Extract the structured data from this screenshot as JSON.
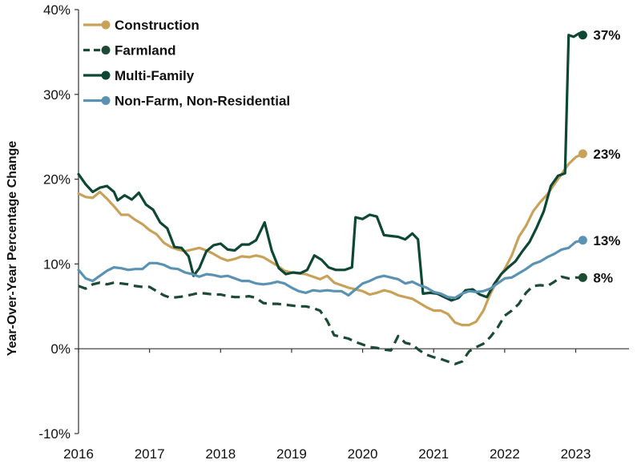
{
  "chart_data": {
    "type": "line",
    "title": "",
    "xlabel": "",
    "ylabel": "Year-Over-Year Percentage Change",
    "xlim": [
      2016,
      2023.75
    ],
    "ylim": [
      -10,
      40
    ],
    "grid": false,
    "legend_position": "top-left",
    "x_ticks": [
      {
        "value": 2016,
        "label": "2016"
      },
      {
        "value": 2017,
        "label": "2017"
      },
      {
        "value": 2018,
        "label": "2018"
      },
      {
        "value": 2019,
        "label": "2019"
      },
      {
        "value": 2020,
        "label": "2020"
      },
      {
        "value": 2021,
        "label": "2021"
      },
      {
        "value": 2022,
        "label": "2022"
      },
      {
        "value": 2023,
        "label": "2023"
      }
    ],
    "y_ticks": [
      {
        "value": -10,
        "label": "-10%"
      },
      {
        "value": 0,
        "label": "0%"
      },
      {
        "value": 10,
        "label": "10%"
      },
      {
        "value": 20,
        "label": "20%"
      },
      {
        "value": 30,
        "label": "30%"
      },
      {
        "value": 40,
        "label": "40%"
      }
    ],
    "series": [
      {
        "name": "Construction",
        "color": "#c9a25a",
        "dash": "solid",
        "end_label": "23%",
        "points": [
          [
            2016.0,
            18.3
          ],
          [
            2016.1,
            17.9
          ],
          [
            2016.2,
            17.8
          ],
          [
            2016.3,
            18.5
          ],
          [
            2016.4,
            17.7
          ],
          [
            2016.5,
            16.8
          ],
          [
            2016.6,
            15.8
          ],
          [
            2016.7,
            15.8
          ],
          [
            2016.8,
            15.2
          ],
          [
            2016.9,
            14.7
          ],
          [
            2017.0,
            14.0
          ],
          [
            2017.1,
            13.5
          ],
          [
            2017.2,
            12.5
          ],
          [
            2017.3,
            12.0
          ],
          [
            2017.4,
            11.7
          ],
          [
            2017.5,
            11.5
          ],
          [
            2017.6,
            11.7
          ],
          [
            2017.7,
            11.9
          ],
          [
            2017.8,
            11.6
          ],
          [
            2017.9,
            11.2
          ],
          [
            2018.0,
            10.7
          ],
          [
            2018.1,
            10.4
          ],
          [
            2018.2,
            10.6
          ],
          [
            2018.3,
            10.9
          ],
          [
            2018.4,
            10.8
          ],
          [
            2018.5,
            11.0
          ],
          [
            2018.6,
            10.8
          ],
          [
            2018.7,
            10.3
          ],
          [
            2018.8,
            9.8
          ],
          [
            2018.9,
            9.2
          ],
          [
            2019.0,
            9.0
          ],
          [
            2019.1,
            8.9
          ],
          [
            2019.2,
            8.8
          ],
          [
            2019.3,
            8.5
          ],
          [
            2019.4,
            8.2
          ],
          [
            2019.5,
            8.6
          ],
          [
            2019.6,
            7.8
          ],
          [
            2019.7,
            7.5
          ],
          [
            2019.8,
            7.2
          ],
          [
            2019.9,
            7.0
          ],
          [
            2020.0,
            6.8
          ],
          [
            2020.1,
            6.4
          ],
          [
            2020.2,
            6.6
          ],
          [
            2020.3,
            6.9
          ],
          [
            2020.4,
            6.7
          ],
          [
            2020.5,
            6.3
          ],
          [
            2020.6,
            6.1
          ],
          [
            2020.7,
            5.9
          ],
          [
            2020.8,
            5.4
          ],
          [
            2020.9,
            4.9
          ],
          [
            2021.0,
            4.5
          ],
          [
            2021.1,
            4.5
          ],
          [
            2021.2,
            4.1
          ],
          [
            2021.3,
            3.1
          ],
          [
            2021.4,
            2.8
          ],
          [
            2021.5,
            2.8
          ],
          [
            2021.6,
            3.2
          ],
          [
            2021.7,
            4.5
          ],
          [
            2021.8,
            6.5
          ],
          [
            2021.9,
            8.1
          ],
          [
            2022.0,
            9.4
          ],
          [
            2022.1,
            11.0
          ],
          [
            2022.2,
            13.2
          ],
          [
            2022.3,
            14.5
          ],
          [
            2022.4,
            16.2
          ],
          [
            2022.5,
            17.3
          ],
          [
            2022.6,
            18.2
          ],
          [
            2022.7,
            19.4
          ],
          [
            2022.8,
            20.6
          ],
          [
            2022.9,
            21.8
          ],
          [
            2023.0,
            22.6
          ],
          [
            2023.1,
            23.0
          ]
        ]
      },
      {
        "name": "Farmland",
        "color": "#1c4a35",
        "dash": "dashed",
        "end_label": "8%",
        "points": [
          [
            2016.0,
            7.4
          ],
          [
            2016.1,
            7.1
          ],
          [
            2016.2,
            7.6
          ],
          [
            2016.3,
            7.8
          ],
          [
            2016.4,
            7.6
          ],
          [
            2016.5,
            7.8
          ],
          [
            2016.6,
            7.7
          ],
          [
            2016.7,
            7.6
          ],
          [
            2016.8,
            7.4
          ],
          [
            2016.9,
            7.3
          ],
          [
            2017.0,
            7.3
          ],
          [
            2017.1,
            6.8
          ],
          [
            2017.2,
            6.3
          ],
          [
            2017.3,
            6.0
          ],
          [
            2017.4,
            6.1
          ],
          [
            2017.5,
            6.2
          ],
          [
            2017.6,
            6.4
          ],
          [
            2017.7,
            6.6
          ],
          [
            2017.8,
            6.5
          ],
          [
            2017.9,
            6.4
          ],
          [
            2018.0,
            6.4
          ],
          [
            2018.1,
            6.2
          ],
          [
            2018.2,
            6.1
          ],
          [
            2018.3,
            6.1
          ],
          [
            2018.4,
            6.2
          ],
          [
            2018.5,
            6.0
          ],
          [
            2018.6,
            5.4
          ],
          [
            2018.7,
            5.3
          ],
          [
            2018.8,
            5.3
          ],
          [
            2018.9,
            5.2
          ],
          [
            2019.0,
            5.1
          ],
          [
            2019.1,
            5.0
          ],
          [
            2019.2,
            5.0
          ],
          [
            2019.3,
            4.8
          ],
          [
            2019.4,
            4.5
          ],
          [
            2019.5,
            3.3
          ],
          [
            2019.6,
            1.6
          ],
          [
            2019.7,
            1.4
          ],
          [
            2019.8,
            1.2
          ],
          [
            2019.9,
            0.8
          ],
          [
            2020.0,
            0.5
          ],
          [
            2020.1,
            0.2
          ],
          [
            2020.2,
            0.1
          ],
          [
            2020.3,
            -0.1
          ],
          [
            2020.4,
            -0.2
          ],
          [
            2020.5,
            1.5
          ],
          [
            2020.6,
            0.7
          ],
          [
            2020.7,
            0.5
          ],
          [
            2020.8,
            -0.2
          ],
          [
            2020.9,
            -0.7
          ],
          [
            2021.0,
            -1.0
          ],
          [
            2021.1,
            -1.2
          ],
          [
            2021.2,
            -1.5
          ],
          [
            2021.3,
            -1.8
          ],
          [
            2021.4,
            -1.5
          ],
          [
            2021.5,
            -0.3
          ],
          [
            2021.6,
            0.2
          ],
          [
            2021.7,
            0.6
          ],
          [
            2021.8,
            1.4
          ],
          [
            2021.9,
            2.5
          ],
          [
            2022.0,
            3.9
          ],
          [
            2022.1,
            4.5
          ],
          [
            2022.2,
            5.3
          ],
          [
            2022.3,
            6.6
          ],
          [
            2022.4,
            7.4
          ],
          [
            2022.5,
            7.5
          ],
          [
            2022.6,
            7.4
          ],
          [
            2022.7,
            7.9
          ],
          [
            2022.8,
            8.5
          ],
          [
            2022.9,
            8.3
          ],
          [
            2023.0,
            8.4
          ],
          [
            2023.1,
            8.4
          ]
        ]
      },
      {
        "name": "Multi-Family",
        "color": "#0e4733",
        "dash": "solid",
        "end_label": "37%",
        "points": [
          [
            2016.0,
            20.6
          ],
          [
            2016.1,
            19.4
          ],
          [
            2016.2,
            18.5
          ],
          [
            2016.3,
            19.0
          ],
          [
            2016.4,
            19.2
          ],
          [
            2016.5,
            18.5
          ],
          [
            2016.55,
            17.5
          ],
          [
            2016.65,
            18.1
          ],
          [
            2016.75,
            17.6
          ],
          [
            2016.85,
            18.4
          ],
          [
            2016.95,
            17.0
          ],
          [
            2017.05,
            16.4
          ],
          [
            2017.15,
            14.9
          ],
          [
            2017.25,
            14.2
          ],
          [
            2017.35,
            12.0
          ],
          [
            2017.45,
            11.9
          ],
          [
            2017.55,
            10.9
          ],
          [
            2017.62,
            8.6
          ],
          [
            2017.7,
            9.5
          ],
          [
            2017.8,
            11.5
          ],
          [
            2017.9,
            12.2
          ],
          [
            2018.0,
            12.4
          ],
          [
            2018.1,
            11.7
          ],
          [
            2018.2,
            11.6
          ],
          [
            2018.3,
            12.3
          ],
          [
            2018.4,
            12.3
          ],
          [
            2018.5,
            12.8
          ],
          [
            2018.62,
            14.9
          ],
          [
            2018.72,
            11.6
          ],
          [
            2018.82,
            9.5
          ],
          [
            2018.92,
            8.8
          ],
          [
            2019.02,
            9.0
          ],
          [
            2019.12,
            8.9
          ],
          [
            2019.22,
            9.3
          ],
          [
            2019.32,
            11.0
          ],
          [
            2019.42,
            10.5
          ],
          [
            2019.52,
            9.6
          ],
          [
            2019.62,
            9.3
          ],
          [
            2019.75,
            9.3
          ],
          [
            2019.85,
            9.6
          ],
          [
            2019.9,
            15.5
          ],
          [
            2020.0,
            15.3
          ],
          [
            2020.1,
            15.8
          ],
          [
            2020.2,
            15.6
          ],
          [
            2020.3,
            13.4
          ],
          [
            2020.4,
            13.3
          ],
          [
            2020.5,
            13.2
          ],
          [
            2020.6,
            12.9
          ],
          [
            2020.7,
            13.6
          ],
          [
            2020.78,
            12.9
          ],
          [
            2020.85,
            6.5
          ],
          [
            2020.95,
            6.6
          ],
          [
            2021.05,
            6.5
          ],
          [
            2021.15,
            6.1
          ],
          [
            2021.25,
            5.7
          ],
          [
            2021.35,
            6.0
          ],
          [
            2021.45,
            6.9
          ],
          [
            2021.55,
            7.0
          ],
          [
            2021.65,
            6.4
          ],
          [
            2021.75,
            6.1
          ],
          [
            2021.85,
            7.6
          ],
          [
            2021.95,
            8.8
          ],
          [
            2022.05,
            9.6
          ],
          [
            2022.15,
            10.3
          ],
          [
            2022.25,
            11.5
          ],
          [
            2022.35,
            12.6
          ],
          [
            2022.45,
            14.3
          ],
          [
            2022.55,
            16.2
          ],
          [
            2022.65,
            19.2
          ],
          [
            2022.75,
            20.4
          ],
          [
            2022.85,
            20.7
          ],
          [
            2022.9,
            37.0
          ],
          [
            2022.97,
            36.8
          ],
          [
            2023.05,
            37.2
          ],
          [
            2023.1,
            37.0
          ]
        ]
      },
      {
        "name": "Non-Farm, Non-Residential",
        "color": "#5b92b4",
        "dash": "solid",
        "end_label": "13%",
        "points": [
          [
            2016.0,
            9.3
          ],
          [
            2016.1,
            8.3
          ],
          [
            2016.2,
            8.0
          ],
          [
            2016.3,
            8.6
          ],
          [
            2016.4,
            9.2
          ],
          [
            2016.5,
            9.6
          ],
          [
            2016.6,
            9.5
          ],
          [
            2016.7,
            9.3
          ],
          [
            2016.8,
            9.4
          ],
          [
            2016.9,
            9.4
          ],
          [
            2017.0,
            10.1
          ],
          [
            2017.1,
            10.1
          ],
          [
            2017.2,
            9.9
          ],
          [
            2017.3,
            9.5
          ],
          [
            2017.4,
            9.4
          ],
          [
            2017.5,
            9.0
          ],
          [
            2017.6,
            8.8
          ],
          [
            2017.7,
            8.5
          ],
          [
            2017.8,
            8.8
          ],
          [
            2017.9,
            8.7
          ],
          [
            2018.0,
            8.5
          ],
          [
            2018.1,
            8.6
          ],
          [
            2018.2,
            8.3
          ],
          [
            2018.3,
            8.0
          ],
          [
            2018.4,
            8.0
          ],
          [
            2018.5,
            7.7
          ],
          [
            2018.6,
            7.6
          ],
          [
            2018.7,
            7.7
          ],
          [
            2018.8,
            7.9
          ],
          [
            2018.9,
            7.7
          ],
          [
            2019.0,
            7.2
          ],
          [
            2019.1,
            6.8
          ],
          [
            2019.2,
            6.6
          ],
          [
            2019.3,
            6.9
          ],
          [
            2019.4,
            6.8
          ],
          [
            2019.5,
            6.9
          ],
          [
            2019.6,
            6.8
          ],
          [
            2019.7,
            6.8
          ],
          [
            2019.8,
            6.3
          ],
          [
            2019.9,
            7.0
          ],
          [
            2020.0,
            7.7
          ],
          [
            2020.1,
            8.0
          ],
          [
            2020.2,
            8.4
          ],
          [
            2020.3,
            8.6
          ],
          [
            2020.4,
            8.4
          ],
          [
            2020.5,
            8.2
          ],
          [
            2020.6,
            7.7
          ],
          [
            2020.7,
            7.9
          ],
          [
            2020.8,
            7.5
          ],
          [
            2020.9,
            7.2
          ],
          [
            2021.0,
            6.7
          ],
          [
            2021.1,
            6.5
          ],
          [
            2021.2,
            6.1
          ],
          [
            2021.3,
            6.0
          ],
          [
            2021.4,
            6.5
          ],
          [
            2021.5,
            6.8
          ],
          [
            2021.6,
            6.7
          ],
          [
            2021.7,
            6.8
          ],
          [
            2021.8,
            7.1
          ],
          [
            2021.9,
            7.7
          ],
          [
            2022.0,
            8.3
          ],
          [
            2022.1,
            8.4
          ],
          [
            2022.2,
            8.9
          ],
          [
            2022.3,
            9.4
          ],
          [
            2022.4,
            10.0
          ],
          [
            2022.5,
            10.3
          ],
          [
            2022.6,
            10.8
          ],
          [
            2022.7,
            11.2
          ],
          [
            2022.8,
            11.7
          ],
          [
            2022.9,
            11.9
          ],
          [
            2023.0,
            12.6
          ],
          [
            2023.1,
            12.8
          ]
        ]
      }
    ]
  }
}
